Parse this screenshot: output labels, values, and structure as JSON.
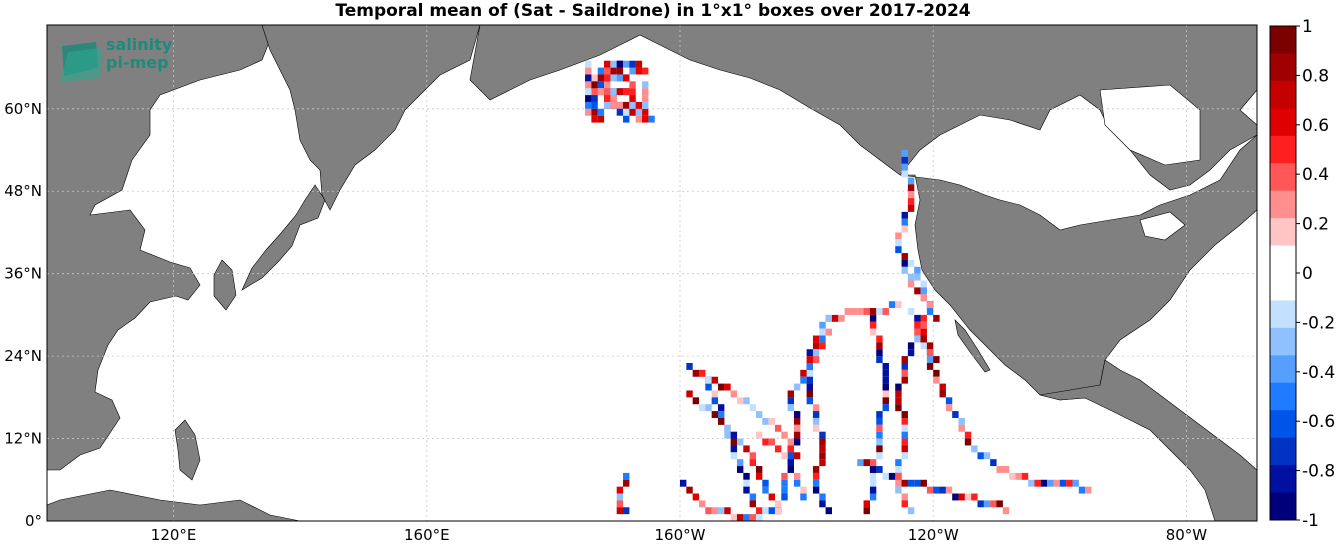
{
  "title": "Temporal mean of (Sat - Saildrone) in 1°x1° boxes over 2017-2024",
  "logo": {
    "line1": "salinity",
    "line2": "pi-mep"
  },
  "y_axis": {
    "ticks": [
      {
        "label": "0°",
        "lat": 0
      },
      {
        "label": "12°N",
        "lat": 12
      },
      {
        "label": "24°N",
        "lat": 24
      },
      {
        "label": "36°N",
        "lat": 36
      },
      {
        "label": "48°N",
        "lat": 48
      },
      {
        "label": "60°N",
        "lat": 60
      }
    ]
  },
  "x_axis": {
    "ticks": [
      {
        "label": "120°E",
        "lon": 120
      },
      {
        "label": "160°E",
        "lon": 160
      },
      {
        "label": "160°W",
        "lon": 200
      },
      {
        "label": "120°W",
        "lon": 240
      },
      {
        "label": "80°W",
        "lon": 280
      }
    ]
  },
  "colorbar": {
    "labels": [
      "1",
      "0.8",
      "0.6",
      "0.4",
      "0.2",
      "0",
      "-0.2",
      "-0.4",
      "-0.6",
      "-0.8",
      "-1"
    ],
    "colors": [
      "#7b0000",
      "#a10000",
      "#c40000",
      "#e00000",
      "#ff1f1f",
      "#ff5757",
      "#ff8f8f",
      "#ffc4c4",
      "#ffffff",
      "#ffffff",
      "#c4e0ff",
      "#8fc1ff",
      "#579fff",
      "#1f7bff",
      "#0055e8",
      "#0033c4",
      "#0011a1",
      "#00007b"
    ]
  },
  "colors": {
    "land": "#808080",
    "ocean": "#ffffff",
    "coast": "#000000",
    "grid": "#c8c8c8"
  }
}
